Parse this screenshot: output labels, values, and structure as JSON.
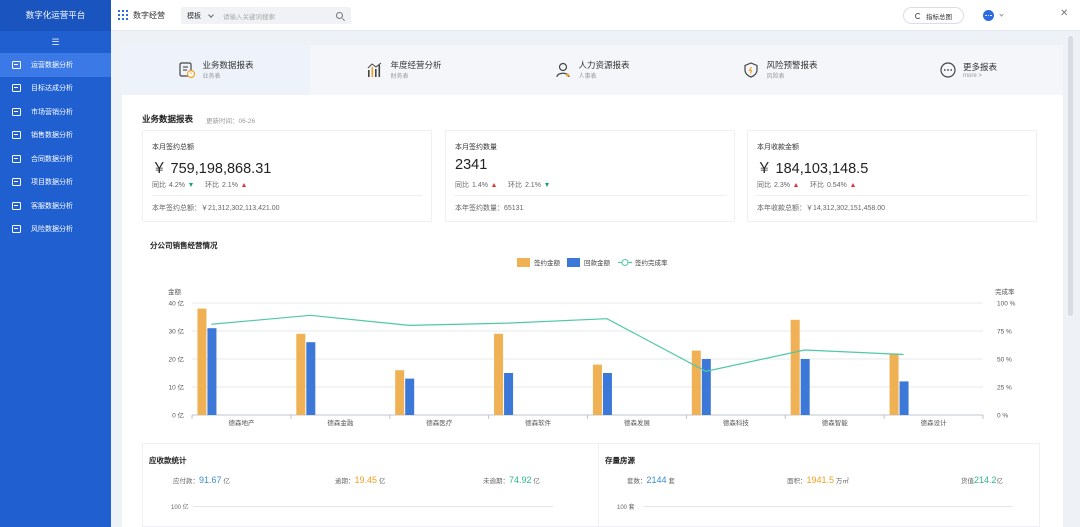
{
  "sidebar": {
    "brand": "数字化运营平台",
    "collapse_icon": "menu-icon",
    "items": [
      {
        "label": "运营数据分析",
        "active": true
      },
      {
        "label": "目标达成分析",
        "active": false
      },
      {
        "label": "市场营销分析",
        "active": false
      },
      {
        "label": "销售数据分析",
        "active": false
      },
      {
        "label": "合同数据分析",
        "active": false
      },
      {
        "label": "项目数据分析",
        "active": false
      },
      {
        "label": "客服数据分析",
        "active": false
      },
      {
        "label": "风险数据分析",
        "active": false
      }
    ]
  },
  "topbar": {
    "app_name": "数字经营",
    "search_scope": "模板",
    "search_placeholder": "请输入关键词搜索",
    "report_button": "指标总图"
  },
  "tabs": [
    {
      "title": "业务数据报表",
      "sub": "业务表",
      "icon": "report-icon",
      "active": true
    },
    {
      "title": "年度经营分析",
      "sub": "财务表",
      "icon": "bar-chart-icon",
      "active": false
    },
    {
      "title": "人力资源报表",
      "sub": "人事表",
      "icon": "person-icon",
      "active": false
    },
    {
      "title": "风险预警报表",
      "sub": "风险表",
      "icon": "shield-icon",
      "active": false
    },
    {
      "title": "更多报表",
      "sub": "more >",
      "icon": "more-icon",
      "active": false
    }
  ],
  "section": {
    "title": "业务数据报表",
    "update_time": "更新时间：06-26"
  },
  "kpis": [
    {
      "label": "本月签约总额",
      "value": "￥ 759,198,868.31",
      "yoy_label": "同比",
      "yoy": "4.2%",
      "yoy_dir": "down",
      "mom_label": "环比",
      "mom": "2.1%",
      "mom_dir": "up",
      "total": "本年签约总额：￥21,312,302,113,421.00"
    },
    {
      "label": "本月签约数量",
      "value": "2341",
      "yoy_label": "同比",
      "yoy": "1.4%",
      "yoy_dir": "up",
      "mom_label": "环比",
      "mom": "2.1%",
      "mom_dir": "down",
      "total": "本年签约数量：65131"
    },
    {
      "label": "本月收款金额",
      "value": "￥ 184,103,148.5",
      "yoy_label": "同比",
      "yoy": "2.3%",
      "yoy_dir": "up",
      "mom_label": "环比",
      "mom": "0.54%",
      "mom_dir": "up",
      "total": "本年收款总额：￥14,312,302,151,458.00"
    }
  ],
  "chart_data": {
    "type": "bar",
    "title": "分公司销售经营情况",
    "categories": [
      "德森地产",
      "德森金融",
      "德森医疗",
      "德森软件",
      "德森发展",
      "德森科技",
      "德森智能",
      "德森设计"
    ],
    "series": [
      {
        "name": "签约金额",
        "type": "bar",
        "axis": "left",
        "color": "#f0b154",
        "values": [
          38,
          29,
          16,
          29,
          18,
          23,
          34,
          22
        ]
      },
      {
        "name": "回款金额",
        "type": "bar",
        "axis": "left",
        "color": "#3b78d8",
        "values": [
          31,
          26,
          13,
          15,
          15,
          20,
          20,
          12
        ]
      },
      {
        "name": "签约完成率",
        "type": "line",
        "axis": "right",
        "color": "#4fc8a8",
        "values": [
          81,
          89,
          80,
          82,
          86,
          39,
          58,
          54
        ]
      }
    ],
    "ylabel": "金额",
    "ylabel_right": "完成率",
    "ylim": [
      0,
      40
    ],
    "ylim_right": [
      0,
      100
    ],
    "yticks": [
      "0 亿",
      "10 亿",
      "20 亿",
      "30 亿",
      "40 亿"
    ],
    "yticks_right": [
      "0 %",
      "25 %",
      "50 %",
      "75 %",
      "100 %"
    ],
    "legend_position": "top-center",
    "grid": true
  },
  "receivables": {
    "title": "应收款统计",
    "items": [
      {
        "label": "应付款：",
        "value": "91.67",
        "unit": "亿",
        "color": "#3b8bd8"
      },
      {
        "label": "逾期：",
        "value": "19.45",
        "unit": "亿",
        "color": "#f0a020"
      },
      {
        "label": "未逾期：",
        "value": "74.92",
        "unit": "亿",
        "color": "#2bb889"
      }
    ],
    "axis_top": "100 亿"
  },
  "inventory": {
    "title": "存量房源",
    "items": [
      {
        "label": "套数：",
        "value": "2144",
        "unit": "套",
        "color": "#3b8bd8"
      },
      {
        "label": "面积：",
        "value": "1941.5",
        "unit": "万㎡",
        "color": "#f0a020"
      },
      {
        "label": "货值",
        "value": "214.2",
        "unit": "亿",
        "color": "#2bb889"
      }
    ],
    "axis_top": "100 套"
  }
}
